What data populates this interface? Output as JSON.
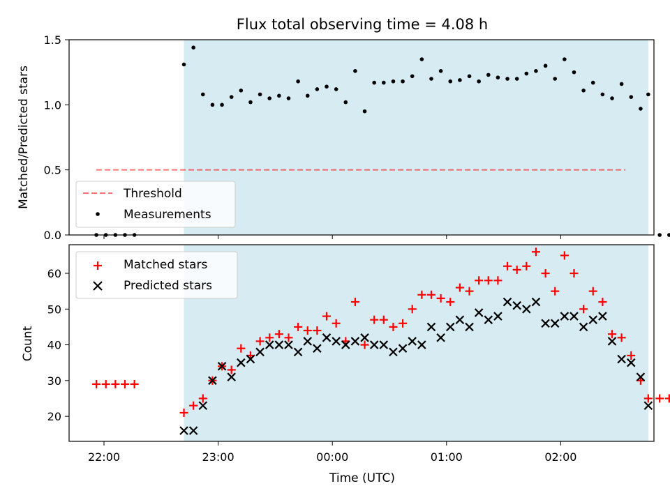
{
  "title": "Flux total observing time = 4.08 h",
  "x_label": "Time (UTC)",
  "x_ticks": [
    "22:00",
    "23:00",
    "00:00",
    "01:00",
    "02:00"
  ],
  "colors": {
    "observing_span": "#add8e6",
    "threshold": "#ff0000",
    "matched": "#ff0000",
    "predicted": "#000000",
    "measurements": "#000000"
  },
  "chart_data": [
    {
      "type": "scatter",
      "ylabel": "Matched/Predicted stars",
      "ylim": [
        0,
        1.5
      ],
      "y_ticks": [
        "0.0",
        "0.5",
        "1.0",
        "1.5"
      ],
      "shaded_span_minutes": [
        42,
        286
      ],
      "legend_position": "lower-left",
      "threshold": {
        "name": "Threshold",
        "value": 0.5,
        "x_range_minutes": [
          -4,
          274
        ]
      },
      "series": [
        {
          "name": "Measurements",
          "x_minutes": [
            -4,
            1,
            6,
            11,
            16,
            42,
            47,
            52,
            57,
            62,
            67,
            72,
            77,
            82,
            87,
            92,
            97,
            102,
            107,
            112,
            117,
            122,
            127,
            132,
            137,
            142,
            147,
            152,
            157,
            162,
            167,
            172,
            177,
            182,
            187,
            192,
            197,
            202,
            207,
            212,
            217,
            222,
            227,
            232,
            237,
            242,
            247,
            252,
            257,
            262,
            267,
            272,
            277,
            282,
            286,
            292,
            297
          ],
          "values": [
            0,
            0,
            0,
            0,
            0,
            1.31,
            1.44,
            1.08,
            1.0,
            1.0,
            1.06,
            1.11,
            1.02,
            1.08,
            1.05,
            1.07,
            1.05,
            1.18,
            1.07,
            1.12,
            1.14,
            1.12,
            1.02,
            1.26,
            0.95,
            1.17,
            1.17,
            1.18,
            1.18,
            1.22,
            1.35,
            1.2,
            1.26,
            1.18,
            1.19,
            1.22,
            1.18,
            1.23,
            1.21,
            1.2,
            1.2,
            1.24,
            1.26,
            1.3,
            1.2,
            1.35,
            1.25,
            1.11,
            1.17,
            1.08,
            1.05,
            1.16,
            1.06,
            0.97,
            1.08,
            0,
            0
          ]
        }
      ]
    },
    {
      "type": "scatter",
      "ylabel": "Count",
      "ylim": [
        13,
        68
      ],
      "y_ticks": [
        "20",
        "30",
        "40",
        "50",
        "60"
      ],
      "shaded_span_minutes": [
        42,
        286
      ],
      "legend_position": "upper-left",
      "series": [
        {
          "name": "Matched stars",
          "marker": "+",
          "x_minutes": [
            -4,
            1,
            6,
            11,
            16,
            42,
            47,
            52,
            57,
            62,
            67,
            72,
            77,
            82,
            87,
            92,
            97,
            102,
            107,
            112,
            117,
            122,
            127,
            132,
            137,
            142,
            147,
            152,
            157,
            162,
            167,
            172,
            177,
            182,
            187,
            192,
            197,
            202,
            207,
            212,
            217,
            222,
            227,
            232,
            237,
            242,
            247,
            252,
            257,
            262,
            267,
            272,
            277,
            282,
            286,
            292,
            297
          ],
          "values": [
            29,
            29,
            29,
            29,
            29,
            21,
            23,
            25,
            30,
            34,
            33,
            39,
            37,
            41,
            42,
            43,
            42,
            45,
            44,
            44,
            48,
            46,
            41,
            52,
            40,
            47,
            47,
            45,
            46,
            50,
            54,
            54,
            53,
            52,
            56,
            55,
            58,
            58,
            58,
            62,
            61,
            62,
            66,
            60,
            55,
            65,
            60,
            50,
            55,
            52,
            43,
            42,
            37,
            30,
            25,
            25,
            25
          ]
        },
        {
          "name": "Predicted stars",
          "marker": "x",
          "x_minutes": [
            42,
            47,
            52,
            57,
            62,
            67,
            72,
            77,
            82,
            87,
            92,
            97,
            102,
            107,
            112,
            117,
            122,
            127,
            132,
            137,
            142,
            147,
            152,
            157,
            162,
            167,
            172,
            177,
            182,
            187,
            192,
            197,
            202,
            207,
            212,
            217,
            222,
            227,
            232,
            237,
            242,
            247,
            252,
            257,
            262,
            267,
            272,
            277,
            282,
            286
          ],
          "values": [
            16,
            16,
            23,
            30,
            34,
            31,
            35,
            36,
            38,
            40,
            40,
            40,
            38,
            41,
            39,
            42,
            41,
            40,
            41,
            42,
            40,
            40,
            38,
            39,
            41,
            40,
            45,
            42,
            45,
            47,
            45,
            49,
            47,
            48,
            52,
            51,
            50,
            52,
            46,
            46,
            48,
            48,
            45,
            47,
            48,
            41,
            36,
            35,
            31,
            23
          ]
        }
      ]
    }
  ]
}
